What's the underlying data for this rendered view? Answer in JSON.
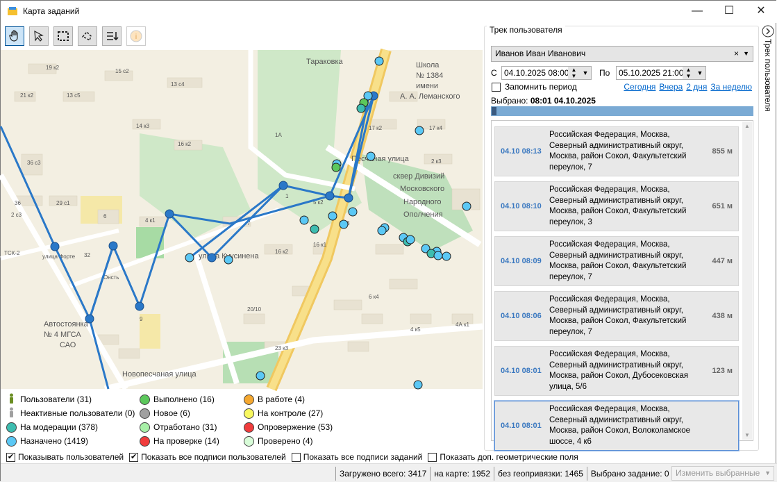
{
  "window": {
    "title": "Карта заданий"
  },
  "toolbar": {
    "tools": [
      {
        "name": "pan-tool",
        "active": true
      },
      {
        "name": "select-tool"
      },
      {
        "name": "rect-select-tool"
      },
      {
        "name": "lasso-select-tool"
      },
      {
        "name": "sort-tool"
      },
      {
        "name": "info-tool"
      }
    ]
  },
  "map": {
    "labels": [
      "Школа",
      "№ 1384",
      "имени",
      "А. А. Леманского",
      "Песчаная улица",
      "сквер Дивизий",
      "Московского",
      "Народного",
      "Ополчения",
      "улица Куусинена",
      "Новопесчаная улица",
      "Автостоянка",
      "№ 4 МГСА",
      "САО",
      "ТСК-2",
      "улица Форте",
      "Онсть",
      "Тараковка",
      "19 к2",
      "15 с2",
      "21 к2",
      "13 с5",
      "13 с4",
      "14 к3",
      "16 к2",
      "17 к2",
      "17 к4",
      "1А",
      "2 с3",
      "36",
      "29 с1",
      "36 с3",
      "32",
      "6",
      "4 к1",
      "1",
      "7",
      "5 к2",
      "5 к3",
      "16 к2",
      "16 к1",
      "2 к3",
      "9",
      "20/10",
      "23 к3",
      "6 к4",
      "4А к1",
      "4 к5"
    ]
  },
  "legend": [
    {
      "label": "Пользователи (31)",
      "type": "user",
      "color": "#6b8e23"
    },
    {
      "label": "Неактивные пользователи (0)",
      "type": "user",
      "color": "#a0a0a0"
    },
    {
      "label": "На модерации (378)",
      "color": "#3dbdb0"
    },
    {
      "label": "Назначено (1419)",
      "color": "#5bc8f5"
    },
    {
      "label": "Выполнено (16)",
      "color": "#5cc85c"
    },
    {
      "label": "Новое (6)",
      "color": "#a0a0a0"
    },
    {
      "label": "Отработано (31)",
      "color": "#a8f0a8"
    },
    {
      "label": "На проверке (14)",
      "color": "#f03c3c"
    },
    {
      "label": "В работе (4)",
      "color": "#f5a830"
    },
    {
      "label": "На контроле (27)",
      "color": "#f8f860"
    },
    {
      "label": "Опровержение (53)",
      "color": "#f03c3c"
    },
    {
      "label": "Проверено (4)",
      "color": "#d8fcd8"
    }
  ],
  "checks": [
    {
      "label": "Показывать пользователей",
      "checked": true
    },
    {
      "label": "Показать все подписи пользователей",
      "checked": true
    },
    {
      "label": "Показать все подписи заданий",
      "checked": false
    },
    {
      "label": "Показать доп. геометрические поля",
      "checked": false
    }
  ],
  "status": {
    "loaded": "Загружено всего: 3417",
    "on_map": "на карте: 1952",
    "no_geo": "без геопривязки: 1465",
    "selected": "Выбрано задание: 0",
    "change_btn": "Изменить выбранные"
  },
  "track": {
    "title": "Трек пользователя",
    "side_tab": "Трек пользователя",
    "user": "Иванов Иван Иванович",
    "from_label": "С",
    "from": "04.10.2025 08:00",
    "to_label": "По",
    "to": "05.10.2025 21:00",
    "remember": "Запомнить период",
    "remember_checked": false,
    "links": [
      "Сегодня",
      "Вчера",
      "2 дня",
      "За неделю"
    ],
    "selected_label": "Выбрано:",
    "selected_value": "08:01 04.10.2025",
    "slider_position": 0,
    "items": [
      {
        "time": "04.10 08:13",
        "address": "Российская Федерация, Москва, Северный административный округ, Москва, район Сокол, Факультетский переулок, 7",
        "dist": "855 м"
      },
      {
        "time": "04.10 08:10",
        "address": "Российская Федерация, Москва, Северный административный округ, Москва, район Сокол, Факультетский переулок, 3",
        "dist": "651 м"
      },
      {
        "time": "04.10 08:09",
        "address": "Российская Федерация, Москва, Северный административный округ, Москва, район Сокол, Факультетский переулок, 7",
        "dist": "447 м"
      },
      {
        "time": "04.10 08:06",
        "address": "Российская Федерация, Москва, Северный административный округ, Москва, район Сокол, Факультетский переулок, 7",
        "dist": "438 м"
      },
      {
        "time": "04.10 08:01",
        "address": "Российская Федерация, Москва, Северный административный округ, Москва, район Сокол, Дубосековская улица, 5/6",
        "dist": "123 м"
      },
      {
        "time": "04.10 08:01",
        "address": "Российская Федерация, Москва, Северный административный округ, Москва, район Сокол, Волоколамское шоссе, 4 к6",
        "dist": ""
      }
    ]
  }
}
